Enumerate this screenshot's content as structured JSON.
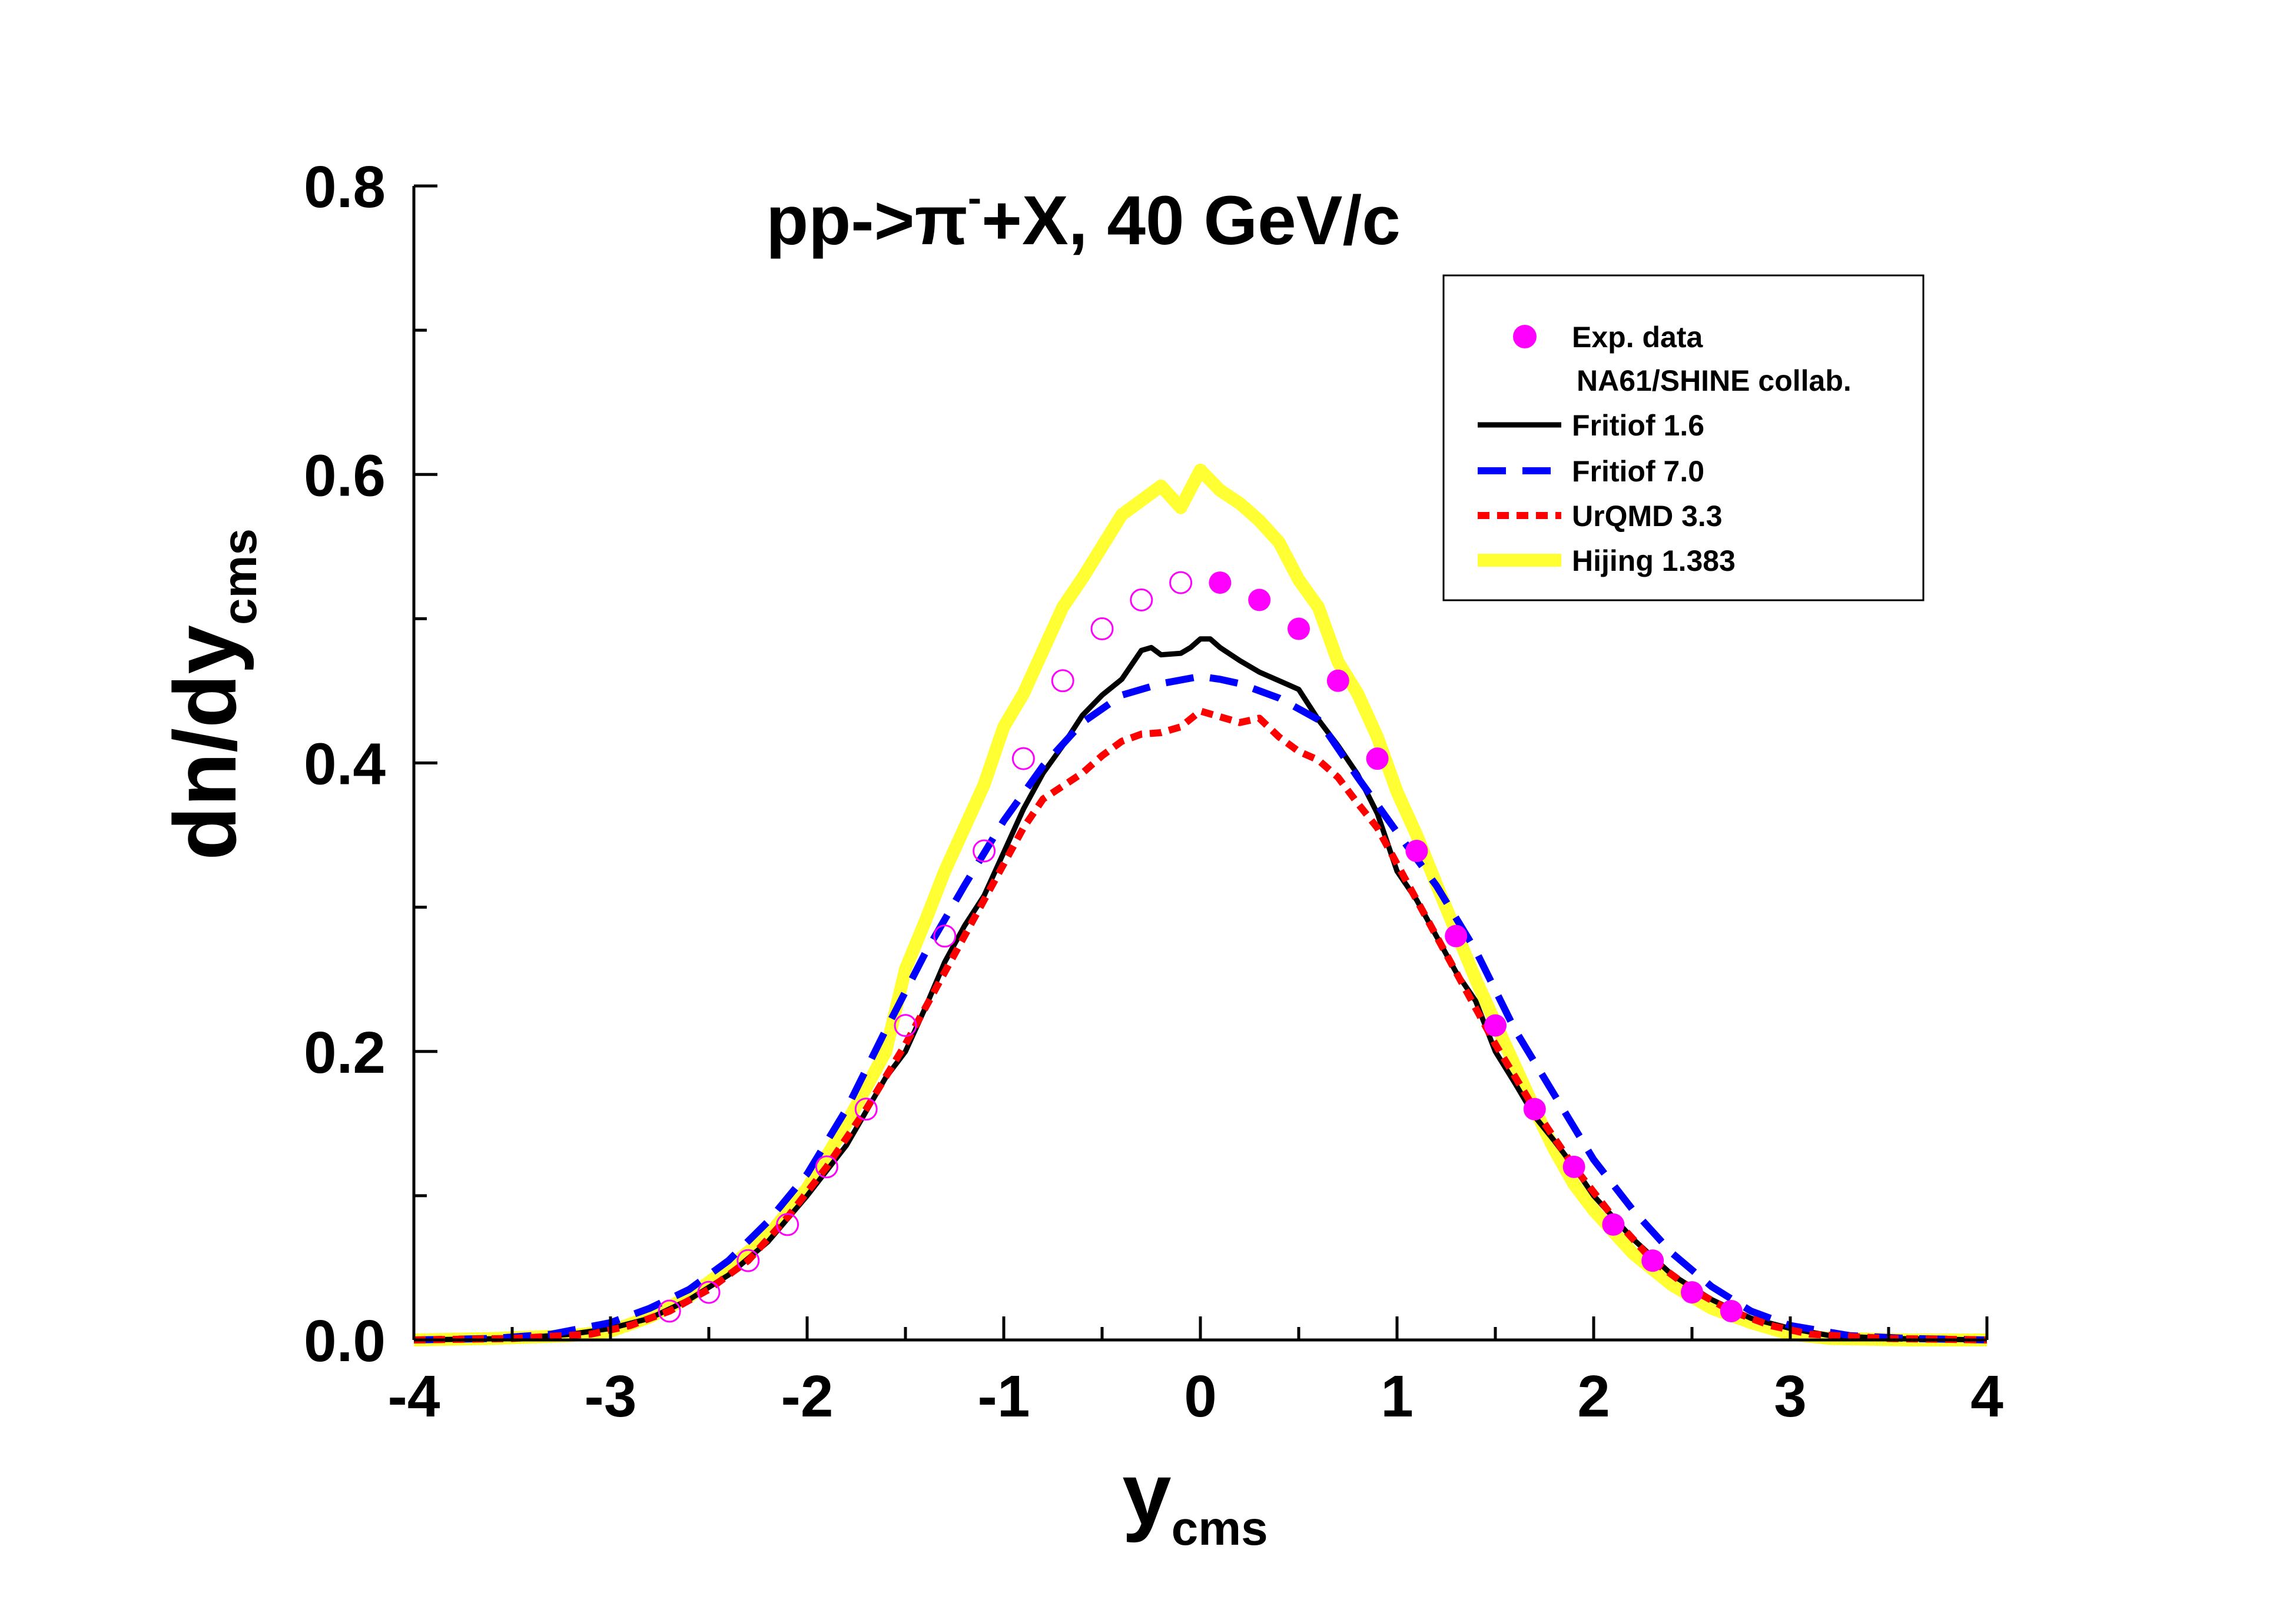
{
  "chart_data": {
    "type": "line",
    "title": {
      "main": "pp->π",
      "superscript": "-",
      "rest": "+X, 40 GeV/c"
    },
    "xlabel": {
      "main": "y",
      "sub": "cms"
    },
    "ylabel": {
      "main": "dn/dy",
      "sub": "cms"
    },
    "xlim": [
      -4,
      4
    ],
    "ylim": [
      0,
      0.8
    ],
    "xticks": [
      -4,
      -3,
      -2,
      -1,
      0,
      1,
      2,
      3,
      4
    ],
    "xtick_labels": [
      "-4",
      "-3",
      "-2",
      "-1",
      "0",
      "1",
      "2",
      "3",
      "4"
    ],
    "yticks": [
      0,
      0.2,
      0.4,
      0.6,
      0.8
    ],
    "ytick_labels": [
      "0.0",
      "0.2",
      "0.4",
      "0.6",
      "0.8"
    ],
    "legend": {
      "position": "top-right",
      "entries": [
        {
          "label": "Exp. data",
          "series": "exp"
        },
        {
          "label": "NA61/SHINE collab.",
          "series": null
        },
        {
          "label": "Fritiof 1.6",
          "series": "fritiof16"
        },
        {
          "label": "Fritiof 7.0",
          "series": "fritiof70"
        },
        {
          "label": "UrQMD 3.3",
          "series": "urqmd"
        },
        {
          "label": "Hijing 1.383",
          "series": "hijing"
        }
      ]
    },
    "scatter": {
      "name": "Exp. data",
      "color": "#ff00ff",
      "points_filled": [
        {
          "x": 0.1,
          "y": 0.525
        },
        {
          "x": 0.3,
          "y": 0.513
        },
        {
          "x": 0.5,
          "y": 0.493
        },
        {
          "x": 0.7,
          "y": 0.457
        },
        {
          "x": 0.9,
          "y": 0.403
        },
        {
          "x": 1.1,
          "y": 0.339
        },
        {
          "x": 1.3,
          "y": 0.28
        },
        {
          "x": 1.5,
          "y": 0.218
        },
        {
          "x": 1.7,
          "y": 0.16
        },
        {
          "x": 1.9,
          "y": 0.12
        },
        {
          "x": 2.1,
          "y": 0.08
        },
        {
          "x": 2.3,
          "y": 0.055
        },
        {
          "x": 2.5,
          "y": 0.033
        },
        {
          "x": 2.7,
          "y": 0.02
        }
      ],
      "points_open": [
        {
          "x": -0.1,
          "y": 0.525
        },
        {
          "x": -0.3,
          "y": 0.513
        },
        {
          "x": -0.5,
          "y": 0.493
        },
        {
          "x": -0.7,
          "y": 0.457
        },
        {
          "x": -0.9,
          "y": 0.403
        },
        {
          "x": -1.1,
          "y": 0.339
        },
        {
          "x": -1.3,
          "y": 0.28
        },
        {
          "x": -1.5,
          "y": 0.218
        },
        {
          "x": -1.7,
          "y": 0.16
        },
        {
          "x": -1.9,
          "y": 0.12
        },
        {
          "x": -2.1,
          "y": 0.08
        },
        {
          "x": -2.3,
          "y": 0.055
        },
        {
          "x": -2.5,
          "y": 0.033
        },
        {
          "x": -2.7,
          "y": 0.02
        }
      ]
    },
    "series": [
      {
        "name": "Hijing 1.383",
        "key": "hijing",
        "color": "#ffff33",
        "style": "solid",
        "points": [
          [
            -4,
            0
          ],
          [
            -3.6,
            0.001
          ],
          [
            -3.2,
            0.003
          ],
          [
            -3,
            0.006
          ],
          [
            -2.8,
            0.016
          ],
          [
            -2.6,
            0.03
          ],
          [
            -2.4,
            0.05
          ],
          [
            -2.2,
            0.072
          ],
          [
            -2,
            0.105
          ],
          [
            -1.8,
            0.15
          ],
          [
            -1.6,
            0.2
          ],
          [
            -1.5,
            0.257
          ],
          [
            -1.4,
            0.29
          ],
          [
            -1.3,
            0.325
          ],
          [
            -1.2,
            0.355
          ],
          [
            -1.1,
            0.385
          ],
          [
            -1,
            0.425
          ],
          [
            -0.9,
            0.448
          ],
          [
            -0.8,
            0.478
          ],
          [
            -0.7,
            0.508
          ],
          [
            -0.6,
            0.528
          ],
          [
            -0.5,
            0.55
          ],
          [
            -0.4,
            0.572
          ],
          [
            -0.3,
            0.582
          ],
          [
            -0.2,
            0.592
          ],
          [
            -0.1,
            0.577
          ],
          [
            0,
            0.603
          ],
          [
            0.1,
            0.589
          ],
          [
            0.2,
            0.58
          ],
          [
            0.3,
            0.568
          ],
          [
            0.4,
            0.553
          ],
          [
            0.5,
            0.527
          ],
          [
            0.6,
            0.508
          ],
          [
            0.7,
            0.47
          ],
          [
            0.8,
            0.448
          ],
          [
            0.9,
            0.418
          ],
          [
            1,
            0.38
          ],
          [
            1.1,
            0.35
          ],
          [
            1.2,
            0.316
          ],
          [
            1.3,
            0.283
          ],
          [
            1.4,
            0.25
          ],
          [
            1.5,
            0.22
          ],
          [
            1.6,
            0.19
          ],
          [
            1.7,
            0.16
          ],
          [
            1.8,
            0.132
          ],
          [
            1.9,
            0.108
          ],
          [
            2,
            0.09
          ],
          [
            2.2,
            0.06
          ],
          [
            2.4,
            0.038
          ],
          [
            2.6,
            0.022
          ],
          [
            2.8,
            0.012
          ],
          [
            3,
            0.004
          ],
          [
            3.2,
            0.001
          ],
          [
            3.6,
            0
          ],
          [
            4,
            0
          ]
        ]
      },
      {
        "name": "Fritiof 1.6",
        "key": "fritiof16",
        "color": "#000000",
        "style": "solid",
        "points": [
          [
            -4,
            0
          ],
          [
            -3.5,
            0.001
          ],
          [
            -3.2,
            0.004
          ],
          [
            -3,
            0.008
          ],
          [
            -2.8,
            0.015
          ],
          [
            -2.6,
            0.028
          ],
          [
            -2.4,
            0.045
          ],
          [
            -2.2,
            0.068
          ],
          [
            -2,
            0.1
          ],
          [
            -1.8,
            0.135
          ],
          [
            -1.6,
            0.182
          ],
          [
            -1.5,
            0.2
          ],
          [
            -1.4,
            0.23
          ],
          [
            -1.3,
            0.262
          ],
          [
            -1.2,
            0.287
          ],
          [
            -1.1,
            0.308
          ],
          [
            -1,
            0.338
          ],
          [
            -0.9,
            0.368
          ],
          [
            -0.8,
            0.393
          ],
          [
            -0.7,
            0.412
          ],
          [
            -0.6,
            0.433
          ],
          [
            -0.5,
            0.447
          ],
          [
            -0.4,
            0.458
          ],
          [
            -0.3,
            0.478
          ],
          [
            -0.25,
            0.48
          ],
          [
            -0.2,
            0.475
          ],
          [
            -0.1,
            0.476
          ],
          [
            -0.05,
            0.48
          ],
          [
            0,
            0.486
          ],
          [
            0.05,
            0.486
          ],
          [
            0.1,
            0.48
          ],
          [
            0.2,
            0.471
          ],
          [
            0.3,
            0.463
          ],
          [
            0.4,
            0.457
          ],
          [
            0.5,
            0.451
          ],
          [
            0.6,
            0.43
          ],
          [
            0.7,
            0.412
          ],
          [
            0.8,
            0.392
          ],
          [
            0.9,
            0.365
          ],
          [
            1,
            0.325
          ],
          [
            1.1,
            0.305
          ],
          [
            1.2,
            0.28
          ],
          [
            1.3,
            0.255
          ],
          [
            1.4,
            0.235
          ],
          [
            1.5,
            0.2
          ],
          [
            1.6,
            0.178
          ],
          [
            1.7,
            0.155
          ],
          [
            1.8,
            0.138
          ],
          [
            1.9,
            0.12
          ],
          [
            2,
            0.1
          ],
          [
            2.2,
            0.07
          ],
          [
            2.4,
            0.045
          ],
          [
            2.6,
            0.028
          ],
          [
            2.8,
            0.015
          ],
          [
            3,
            0.008
          ],
          [
            3.2,
            0.003
          ],
          [
            3.5,
            0.001
          ],
          [
            4,
            0
          ]
        ]
      },
      {
        "name": "Fritiof 7.0",
        "key": "fritiof70",
        "color": "#0000ff",
        "style": "long-dash",
        "points": [
          [
            -4,
            0
          ],
          [
            -3.6,
            0.001
          ],
          [
            -3.3,
            0.004
          ],
          [
            -3,
            0.012
          ],
          [
            -2.8,
            0.022
          ],
          [
            -2.6,
            0.035
          ],
          [
            -2.4,
            0.055
          ],
          [
            -2.2,
            0.082
          ],
          [
            -2,
            0.115
          ],
          [
            -1.8,
            0.16
          ],
          [
            -1.6,
            0.215
          ],
          [
            -1.4,
            0.268
          ],
          [
            -1.2,
            0.315
          ],
          [
            -1,
            0.36
          ],
          [
            -0.8,
            0.398
          ],
          [
            -0.6,
            0.428
          ],
          [
            -0.4,
            0.447
          ],
          [
            -0.2,
            0.455
          ],
          [
            0,
            0.46
          ],
          [
            0.1,
            0.458
          ],
          [
            0.2,
            0.455
          ],
          [
            0.4,
            0.445
          ],
          [
            0.6,
            0.43
          ],
          [
            0.8,
            0.39
          ],
          [
            1,
            0.352
          ],
          [
            1.2,
            0.315
          ],
          [
            1.4,
            0.27
          ],
          [
            1.6,
            0.215
          ],
          [
            1.8,
            0.17
          ],
          [
            2,
            0.125
          ],
          [
            2.2,
            0.09
          ],
          [
            2.4,
            0.06
          ],
          [
            2.6,
            0.037
          ],
          [
            2.8,
            0.02
          ],
          [
            3,
            0.01
          ],
          [
            3.3,
            0.003
          ],
          [
            3.6,
            0.001
          ],
          [
            4,
            0
          ]
        ]
      },
      {
        "name": "UrQMD 3.3",
        "key": "urqmd",
        "color": "#ff0000",
        "style": "short-dash",
        "points": [
          [
            -4,
            0
          ],
          [
            -3.5,
            0.001
          ],
          [
            -3.1,
            0.004
          ],
          [
            -2.9,
            0.01
          ],
          [
            -2.7,
            0.02
          ],
          [
            -2.5,
            0.035
          ],
          [
            -2.3,
            0.055
          ],
          [
            -2.1,
            0.085
          ],
          [
            -1.9,
            0.12
          ],
          [
            -1.7,
            0.16
          ],
          [
            -1.5,
            0.205
          ],
          [
            -1.3,
            0.255
          ],
          [
            -1.1,
            0.305
          ],
          [
            -1,
            0.33
          ],
          [
            -0.9,
            0.355
          ],
          [
            -0.8,
            0.375
          ],
          [
            -0.6,
            0.393
          ],
          [
            -0.5,
            0.405
          ],
          [
            -0.4,
            0.415
          ],
          [
            -0.3,
            0.42
          ],
          [
            -0.2,
            0.421
          ],
          [
            -0.1,
            0.425
          ],
          [
            0,
            0.436
          ],
          [
            0.1,
            0.432
          ],
          [
            0.2,
            0.428
          ],
          [
            0.3,
            0.431
          ],
          [
            0.4,
            0.418
          ],
          [
            0.5,
            0.408
          ],
          [
            0.6,
            0.402
          ],
          [
            0.7,
            0.39
          ],
          [
            0.8,
            0.372
          ],
          [
            0.9,
            0.355
          ],
          [
            1,
            0.33
          ],
          [
            1.1,
            0.305
          ],
          [
            1.3,
            0.255
          ],
          [
            1.5,
            0.205
          ],
          [
            1.7,
            0.16
          ],
          [
            1.9,
            0.12
          ],
          [
            2.1,
            0.085
          ],
          [
            2.3,
            0.055
          ],
          [
            2.5,
            0.035
          ],
          [
            2.7,
            0.02
          ],
          [
            2.9,
            0.01
          ],
          [
            3.1,
            0.004
          ],
          [
            3.5,
            0.001
          ],
          [
            4,
            0
          ]
        ]
      }
    ]
  }
}
